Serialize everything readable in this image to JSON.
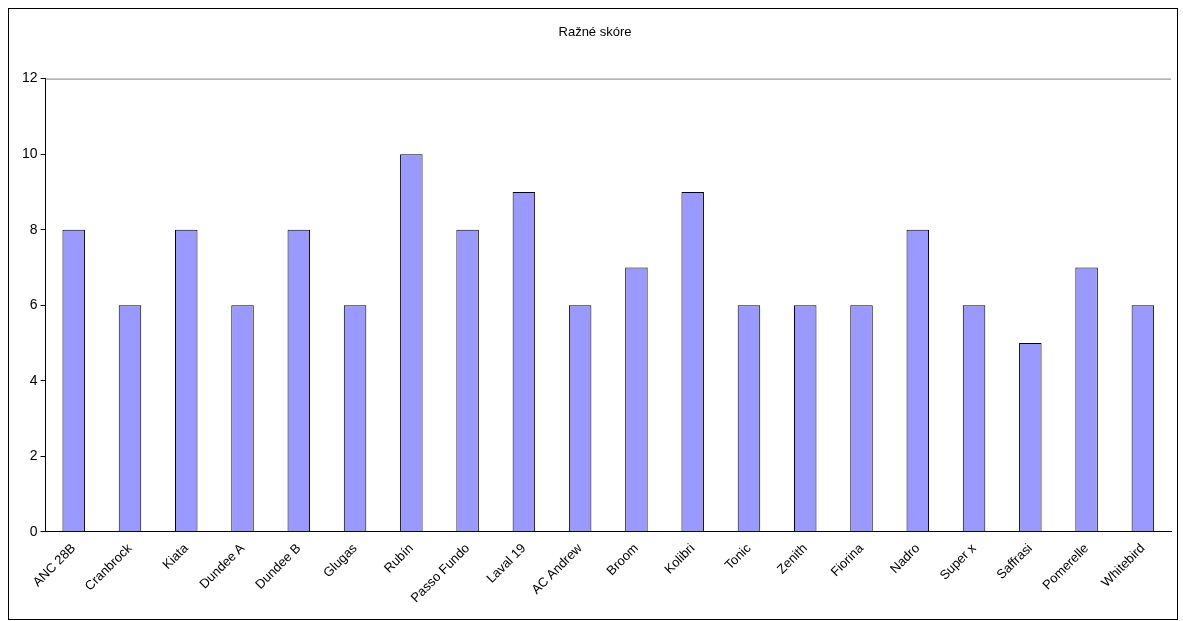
{
  "chart_data": {
    "type": "bar",
    "title": "Ražné skóre",
    "categories": [
      "ANC 28B",
      "Cranbrock",
      "Kiata",
      "Dundee A",
      "Dundee B",
      "Glugas",
      "Rubín",
      "Passo Fundo",
      "Laval 19",
      "AC Andrew",
      "Broom",
      "Kolibri",
      "Tonic",
      "Zenith",
      "Fiorina",
      "Nadro",
      "Super x",
      "Saffrasi",
      "Pomerelle",
      "Whitebird"
    ],
    "values": [
      8,
      6,
      8,
      6,
      8,
      6,
      10,
      8,
      9,
      6,
      7,
      9,
      6,
      6,
      6,
      8,
      6,
      5,
      7,
      6
    ],
    "color": "#9999ff",
    "ylim": [
      0,
      12
    ],
    "yticks": [
      0,
      2,
      4,
      6,
      8,
      10,
      12
    ],
    "grid": false,
    "legend": false
  }
}
